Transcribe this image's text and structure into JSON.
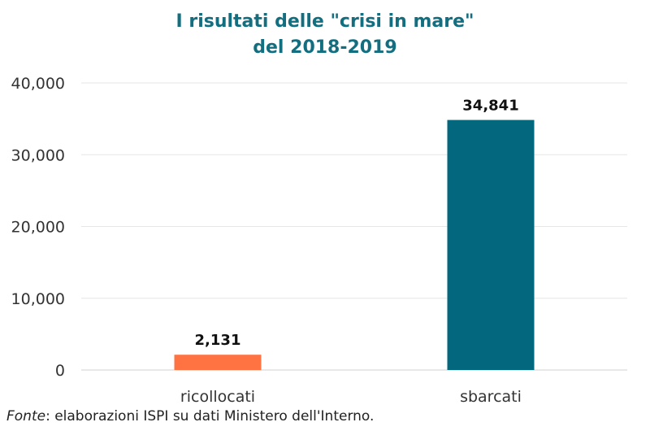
{
  "chart_data": {
    "type": "bar",
    "title": [
      "I risultati delle \"crisi in mare\"",
      "del 2018-2019"
    ],
    "categories": [
      "ricollocati",
      "sbarcati"
    ],
    "values": [
      2131,
      34841
    ],
    "value_labels": [
      "2,131",
      "34,841"
    ],
    "colors": [
      "#ff7343",
      "#03677d"
    ],
    "xlabel": "",
    "ylabel": "",
    "ylim": [
      0,
      40000
    ],
    "yticks": [
      0,
      10000,
      20000,
      30000,
      40000
    ],
    "ytick_labels": [
      "0",
      "10,000",
      "20,000",
      "30,000",
      "40,000"
    ],
    "grid": true
  },
  "source": {
    "label": "Fonte",
    "text": ": elaborazioni ISPI su dati Ministero dell'Interno."
  },
  "title_color": "#136e80"
}
